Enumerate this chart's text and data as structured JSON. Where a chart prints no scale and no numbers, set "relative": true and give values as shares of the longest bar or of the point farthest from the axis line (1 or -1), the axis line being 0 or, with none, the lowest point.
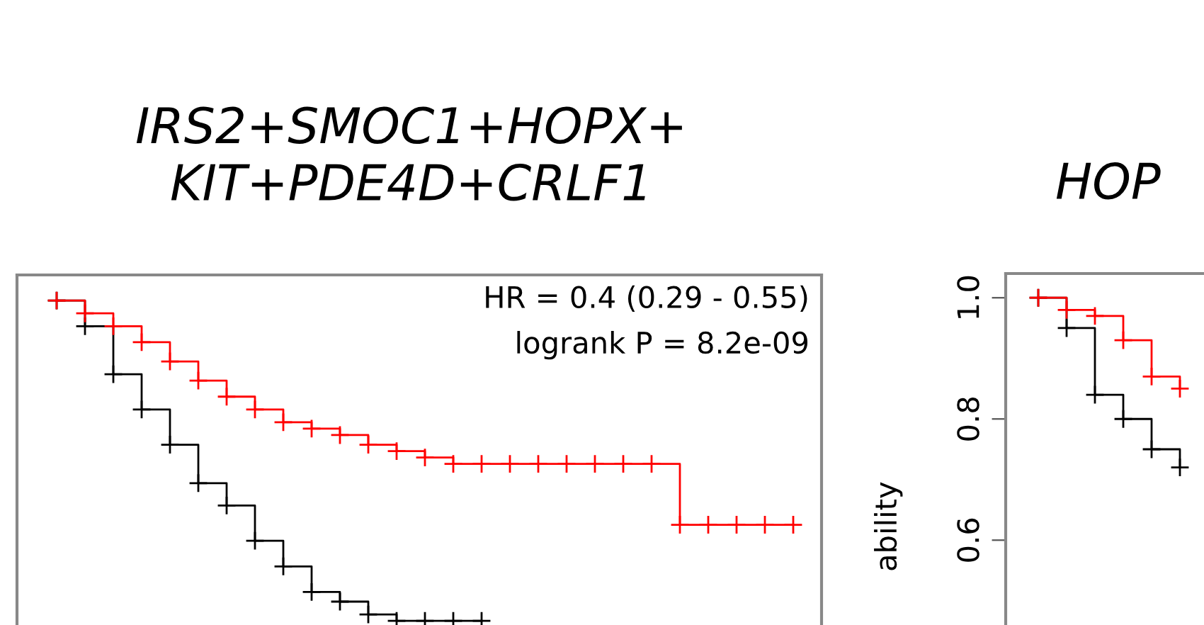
{
  "chart_data": [
    {
      "type": "step",
      "title": "IRS2+SMOC1+HOPX+\nKIT+PDE4D+CRLF1",
      "annotations": [
        "HR = 0.4 (0.29 - 0.55)",
        "logrank P = 8.2e-09"
      ],
      "relative": true,
      "categories": [
        null,
        null,
        null,
        null,
        null,
        null,
        null,
        null,
        null,
        null,
        null,
        null,
        null,
        null,
        null,
        null,
        null,
        null,
        null,
        null,
        null,
        null,
        null,
        null,
        null,
        null,
        null
      ],
      "series": [
        {
          "color": "#ff0000",
          "values": [
            1,
            0.96,
            0.92,
            0.87,
            0.81,
            0.75,
            0.7,
            0.66,
            0.62,
            0.6,
            0.58,
            0.55,
            0.53,
            0.51,
            0.49,
            0.49,
            0.49,
            0.49,
            0.49,
            0.49,
            0.49,
            0.49,
            0.3,
            0.3,
            0.3,
            0.3,
            0.3
          ]
        },
        {
          "color": "#000000",
          "values": [
            1,
            0.92,
            0.77,
            0.66,
            0.55,
            0.43,
            0.36,
            0.25,
            0.17,
            0.09,
            0.06,
            0.02,
            0,
            0,
            0,
            0,
            null,
            null,
            null,
            null,
            null,
            null,
            null,
            null,
            null,
            null,
            null
          ]
        }
      ],
      "tick_labels": false,
      "marker": "cross",
      "line_style": "solid"
    },
    {
      "type": "step",
      "title": "HOP",
      "ylabel": "ability",
      "categories": [
        null,
        null,
        null,
        null,
        null,
        null
      ],
      "series": [
        {
          "color": "#ff0000",
          "values": [
            1.0,
            0.98,
            0.97,
            0.93,
            0.87,
            0.85
          ]
        },
        {
          "color": "#000000",
          "values": [
            1.0,
            0.95,
            0.84,
            0.8,
            0.75,
            0.72
          ]
        }
      ],
      "ylim": [
        0.46,
        1.04
      ],
      "yticks": [
        {
          "value": 0.6,
          "label": "0.6"
        },
        {
          "value": 0.8,
          "label": "0.8"
        },
        {
          "value": 1.0,
          "label": "1.0"
        }
      ],
      "tick_labels": "y",
      "marker": "cross",
      "line_style": "solid"
    }
  ]
}
